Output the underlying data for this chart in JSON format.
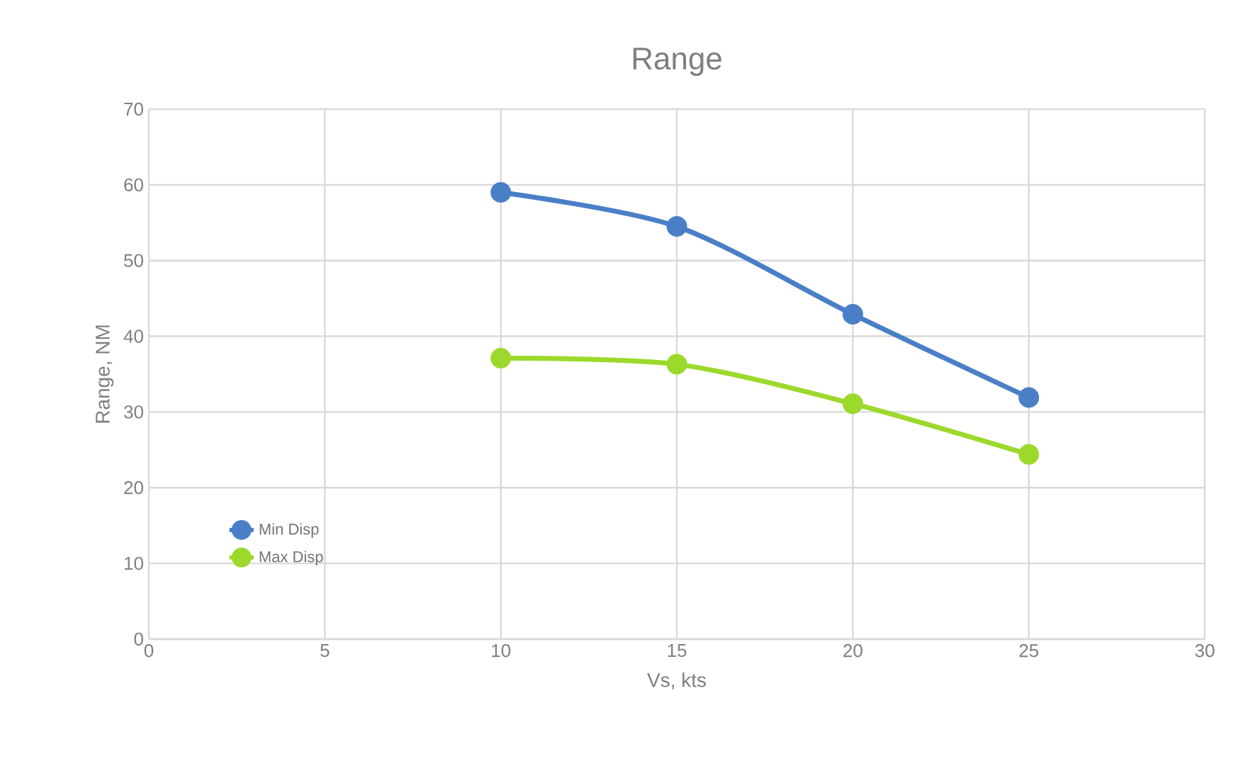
{
  "chart_data": {
    "type": "line",
    "title": "Range",
    "xlabel": "Vs, kts",
    "ylabel": "Range, NM",
    "x": [
      10,
      15,
      20,
      25
    ],
    "series": [
      {
        "name": "Min Disp",
        "color": "#4a7fc7",
        "values": [
          59.0,
          54.5,
          42.9,
          31.9
        ]
      },
      {
        "name": "Max Disp",
        "color": "#9cd92c",
        "values": [
          37.1,
          36.3,
          31.1,
          24.4
        ]
      }
    ],
    "xlim": [
      0,
      30
    ],
    "xticks": [
      0,
      5,
      10,
      15,
      20,
      25,
      30
    ],
    "ylim": [
      0,
      70
    ],
    "yticks": [
      0,
      10,
      20,
      30,
      40,
      50,
      60,
      70
    ],
    "grid": true,
    "legend": "bottom left",
    "marker": "circle",
    "line_style": "solid"
  }
}
